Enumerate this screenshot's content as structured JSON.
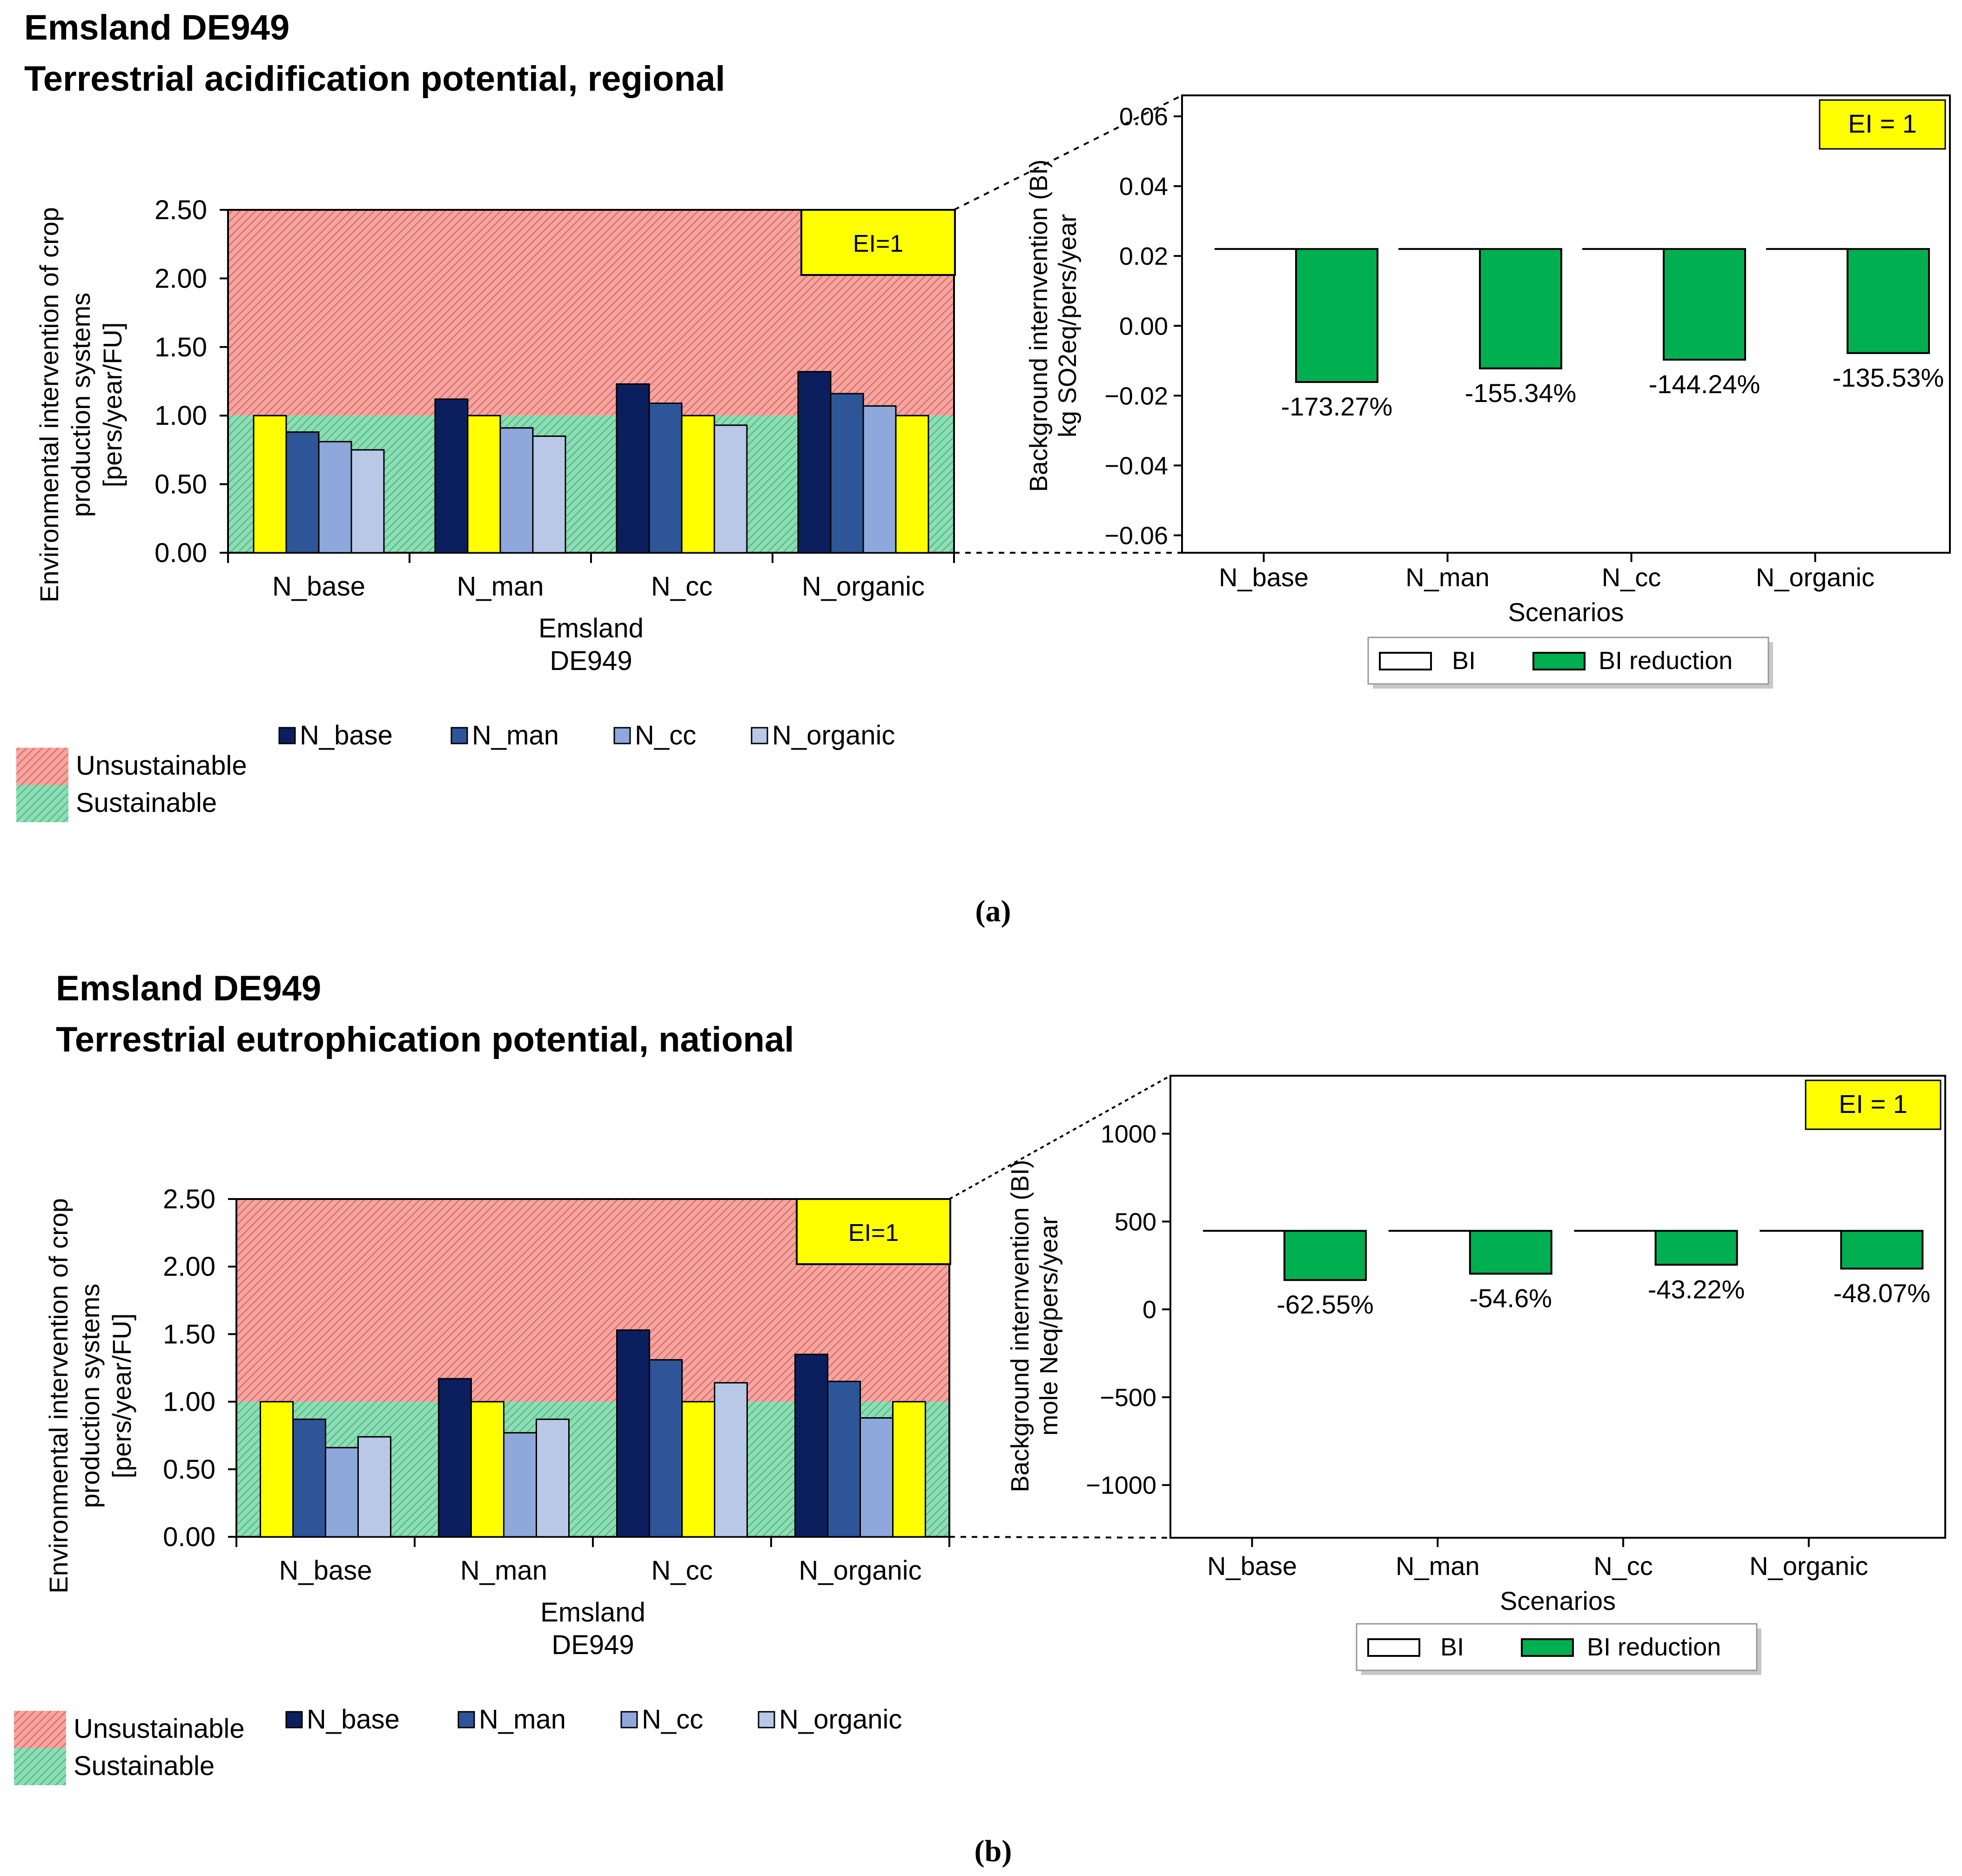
{
  "figure": {
    "panels": [
      {
        "title_line1": "Emsland DE949",
        "title_line2": "Terrestrial acidification potential, regional",
        "caption": "(a)"
      },
      {
        "title_line1": "Emsland DE949",
        "title_line2": "Terrestrial eutrophication potential, national",
        "caption": "(b)"
      }
    ]
  },
  "chart_data": [
    {
      "type": "bar",
      "panel": "a",
      "ylabel_lines": [
        "Environmental  intervention  of crop",
        "production  systems",
        "[pers/year/FU]"
      ],
      "xlabel_lines": [
        "Emsland",
        "DE949"
      ],
      "categories": [
        "N_base",
        "N_man",
        "N_cc",
        "N_organic"
      ],
      "series": [
        {
          "name": "N_base",
          "color": "#0b1f5e",
          "values": [
            1.0,
            1.12,
            1.23,
            1.32
          ]
        },
        {
          "name": "N_man",
          "color": "#2e5597",
          "values": [
            0.88,
            1.0,
            1.09,
            1.16
          ]
        },
        {
          "name": "N_cc",
          "color": "#8fa8dc",
          "values": [
            0.81,
            0.91,
            1.0,
            1.07
          ]
        },
        {
          "name": "N_organic",
          "color": "#b8c8e6",
          "values": [
            0.75,
            0.85,
            0.93,
            1.0
          ]
        }
      ],
      "baseline_color": "#ffff00",
      "yticks": [
        "0.00",
        "0.50",
        "1.00",
        "1.50",
        "2.00",
        "2.50"
      ],
      "ylim": [
        0,
        2.5
      ],
      "threshold": 1.0,
      "threshold_label": "EI=1",
      "zones": [
        {
          "name": "Unsustainable",
          "color": "#ef8a84"
        },
        {
          "name": "Sustainable",
          "color": "#6ccc9c"
        }
      ]
    },
    {
      "type": "bar",
      "panel": "a-inset",
      "ylabel_lines": [
        "Background internvention (BI)",
        "kg SO2eq/pers/year"
      ],
      "xlabel": "Scenarios",
      "categories": [
        "N_base",
        "N_man",
        "N_cc",
        "N_organic"
      ],
      "bi_values": [
        0.022,
        0.022,
        0.022,
        0.022
      ],
      "reduction_end_values": [
        -0.0161,
        -0.0122,
        -0.0097,
        -0.0078
      ],
      "reduction_labels": [
        "-173.27%",
        "-155.34%",
        "-144.24%",
        "-135.53%"
      ],
      "yticks": [
        "−0.06",
        "−0.04",
        "−0.02",
        "0.00",
        "0.02",
        "0.04",
        "0.06"
      ],
      "ylim": [
        -0.065,
        0.066
      ],
      "ei_label": "EI = 1",
      "legend": {
        "bi": "BI",
        "bi_reduction": "BI reduction"
      },
      "colors": {
        "bi": "#ffffff",
        "bi_reduction": "#00b050"
      }
    },
    {
      "type": "bar",
      "panel": "b",
      "ylabel_lines": [
        "Environmental  intervention  of crop",
        "production  systems",
        "[pers/year/FU]"
      ],
      "xlabel_lines": [
        "Emsland",
        "DE949"
      ],
      "categories": [
        "N_base",
        "N_man",
        "N_cc",
        "N_organic"
      ],
      "series": [
        {
          "name": "N_base",
          "color": "#0b1f5e",
          "values": [
            1.0,
            1.17,
            1.53,
            1.35
          ]
        },
        {
          "name": "N_man",
          "color": "#2e5597",
          "values": [
            0.87,
            1.0,
            1.31,
            1.15
          ]
        },
        {
          "name": "N_cc",
          "color": "#8fa8dc",
          "values": [
            0.66,
            0.77,
            1.0,
            0.88
          ]
        },
        {
          "name": "N_organic",
          "color": "#b8c8e6",
          "values": [
            0.74,
            0.87,
            1.14,
            1.0
          ]
        }
      ],
      "baseline_color": "#ffff00",
      "yticks": [
        "0.00",
        "0.50",
        "1.00",
        "1.50",
        "2.00",
        "2.50"
      ],
      "ylim": [
        0,
        2.5
      ],
      "threshold": 1.0,
      "threshold_label": "EI=1",
      "zones": [
        {
          "name": "Unsustainable",
          "color": "#ef8a84"
        },
        {
          "name": "Sustainable",
          "color": "#6ccc9c"
        }
      ]
    },
    {
      "type": "bar",
      "panel": "b-inset",
      "ylabel_lines": [
        "Background internvention (BI)",
        "mole Neq/pers/year"
      ],
      "xlabel": "Scenarios",
      "categories": [
        "N_base",
        "N_man",
        "N_cc",
        "N_organic"
      ],
      "bi_values": [
        447,
        447,
        447,
        447
      ],
      "reduction_end_values": [
        167,
        203,
        254,
        232
      ],
      "reduction_labels": [
        "-62.55%",
        "-54.6%",
        "-43.22%",
        "-48.07%"
      ],
      "yticks": [
        "−1000",
        "−500",
        "0",
        "500",
        "1000"
      ],
      "ylim": [
        -1300,
        1330
      ],
      "ei_label": "EI = 1",
      "legend": {
        "bi": "BI",
        "bi_reduction": "BI reduction"
      },
      "colors": {
        "bi": "#ffffff",
        "bi_reduction": "#00b050"
      }
    }
  ]
}
